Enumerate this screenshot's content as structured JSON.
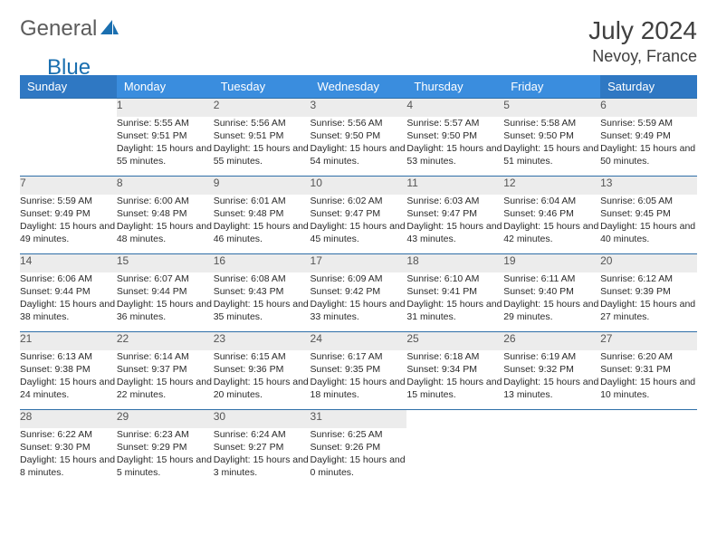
{
  "brand": {
    "part1": "General",
    "part2": "Blue"
  },
  "header": {
    "title": "July 2024",
    "location": "Nevoy, France"
  },
  "colors": {
    "header_blue": "#3a8dde",
    "header_blue_end": "#2f78c3",
    "row_divider": "#2f6fa8",
    "daynum_bg": "#ececec",
    "text": "#2a2a2a",
    "logo_gray": "#5c5c5c",
    "logo_blue": "#1a6fb0"
  },
  "weekdays": [
    "Sunday",
    "Monday",
    "Tuesday",
    "Wednesday",
    "Thursday",
    "Friday",
    "Saturday"
  ],
  "weeks": [
    [
      null,
      {
        "n": "1",
        "sunrise": "Sunrise: 5:55 AM",
        "sunset": "Sunset: 9:51 PM",
        "daylight": "Daylight: 15 hours and 55 minutes."
      },
      {
        "n": "2",
        "sunrise": "Sunrise: 5:56 AM",
        "sunset": "Sunset: 9:51 PM",
        "daylight": "Daylight: 15 hours and 55 minutes."
      },
      {
        "n": "3",
        "sunrise": "Sunrise: 5:56 AM",
        "sunset": "Sunset: 9:50 PM",
        "daylight": "Daylight: 15 hours and 54 minutes."
      },
      {
        "n": "4",
        "sunrise": "Sunrise: 5:57 AM",
        "sunset": "Sunset: 9:50 PM",
        "daylight": "Daylight: 15 hours and 53 minutes."
      },
      {
        "n": "5",
        "sunrise": "Sunrise: 5:58 AM",
        "sunset": "Sunset: 9:50 PM",
        "daylight": "Daylight: 15 hours and 51 minutes."
      },
      {
        "n": "6",
        "sunrise": "Sunrise: 5:59 AM",
        "sunset": "Sunset: 9:49 PM",
        "daylight": "Daylight: 15 hours and 50 minutes."
      }
    ],
    [
      {
        "n": "7",
        "sunrise": "Sunrise: 5:59 AM",
        "sunset": "Sunset: 9:49 PM",
        "daylight": "Daylight: 15 hours and 49 minutes."
      },
      {
        "n": "8",
        "sunrise": "Sunrise: 6:00 AM",
        "sunset": "Sunset: 9:48 PM",
        "daylight": "Daylight: 15 hours and 48 minutes."
      },
      {
        "n": "9",
        "sunrise": "Sunrise: 6:01 AM",
        "sunset": "Sunset: 9:48 PM",
        "daylight": "Daylight: 15 hours and 46 minutes."
      },
      {
        "n": "10",
        "sunrise": "Sunrise: 6:02 AM",
        "sunset": "Sunset: 9:47 PM",
        "daylight": "Daylight: 15 hours and 45 minutes."
      },
      {
        "n": "11",
        "sunrise": "Sunrise: 6:03 AM",
        "sunset": "Sunset: 9:47 PM",
        "daylight": "Daylight: 15 hours and 43 minutes."
      },
      {
        "n": "12",
        "sunrise": "Sunrise: 6:04 AM",
        "sunset": "Sunset: 9:46 PM",
        "daylight": "Daylight: 15 hours and 42 minutes."
      },
      {
        "n": "13",
        "sunrise": "Sunrise: 6:05 AM",
        "sunset": "Sunset: 9:45 PM",
        "daylight": "Daylight: 15 hours and 40 minutes."
      }
    ],
    [
      {
        "n": "14",
        "sunrise": "Sunrise: 6:06 AM",
        "sunset": "Sunset: 9:44 PM",
        "daylight": "Daylight: 15 hours and 38 minutes."
      },
      {
        "n": "15",
        "sunrise": "Sunrise: 6:07 AM",
        "sunset": "Sunset: 9:44 PM",
        "daylight": "Daylight: 15 hours and 36 minutes."
      },
      {
        "n": "16",
        "sunrise": "Sunrise: 6:08 AM",
        "sunset": "Sunset: 9:43 PM",
        "daylight": "Daylight: 15 hours and 35 minutes."
      },
      {
        "n": "17",
        "sunrise": "Sunrise: 6:09 AM",
        "sunset": "Sunset: 9:42 PM",
        "daylight": "Daylight: 15 hours and 33 minutes."
      },
      {
        "n": "18",
        "sunrise": "Sunrise: 6:10 AM",
        "sunset": "Sunset: 9:41 PM",
        "daylight": "Daylight: 15 hours and 31 minutes."
      },
      {
        "n": "19",
        "sunrise": "Sunrise: 6:11 AM",
        "sunset": "Sunset: 9:40 PM",
        "daylight": "Daylight: 15 hours and 29 minutes."
      },
      {
        "n": "20",
        "sunrise": "Sunrise: 6:12 AM",
        "sunset": "Sunset: 9:39 PM",
        "daylight": "Daylight: 15 hours and 27 minutes."
      }
    ],
    [
      {
        "n": "21",
        "sunrise": "Sunrise: 6:13 AM",
        "sunset": "Sunset: 9:38 PM",
        "daylight": "Daylight: 15 hours and 24 minutes."
      },
      {
        "n": "22",
        "sunrise": "Sunrise: 6:14 AM",
        "sunset": "Sunset: 9:37 PM",
        "daylight": "Daylight: 15 hours and 22 minutes."
      },
      {
        "n": "23",
        "sunrise": "Sunrise: 6:15 AM",
        "sunset": "Sunset: 9:36 PM",
        "daylight": "Daylight: 15 hours and 20 minutes."
      },
      {
        "n": "24",
        "sunrise": "Sunrise: 6:17 AM",
        "sunset": "Sunset: 9:35 PM",
        "daylight": "Daylight: 15 hours and 18 minutes."
      },
      {
        "n": "25",
        "sunrise": "Sunrise: 6:18 AM",
        "sunset": "Sunset: 9:34 PM",
        "daylight": "Daylight: 15 hours and 15 minutes."
      },
      {
        "n": "26",
        "sunrise": "Sunrise: 6:19 AM",
        "sunset": "Sunset: 9:32 PM",
        "daylight": "Daylight: 15 hours and 13 minutes."
      },
      {
        "n": "27",
        "sunrise": "Sunrise: 6:20 AM",
        "sunset": "Sunset: 9:31 PM",
        "daylight": "Daylight: 15 hours and 10 minutes."
      }
    ],
    [
      {
        "n": "28",
        "sunrise": "Sunrise: 6:22 AM",
        "sunset": "Sunset: 9:30 PM",
        "daylight": "Daylight: 15 hours and 8 minutes."
      },
      {
        "n": "29",
        "sunrise": "Sunrise: 6:23 AM",
        "sunset": "Sunset: 9:29 PM",
        "daylight": "Daylight: 15 hours and 5 minutes."
      },
      {
        "n": "30",
        "sunrise": "Sunrise: 6:24 AM",
        "sunset": "Sunset: 9:27 PM",
        "daylight": "Daylight: 15 hours and 3 minutes."
      },
      {
        "n": "31",
        "sunrise": "Sunrise: 6:25 AM",
        "sunset": "Sunset: 9:26 PM",
        "daylight": "Daylight: 15 hours and 0 minutes."
      },
      null,
      null,
      null
    ]
  ]
}
